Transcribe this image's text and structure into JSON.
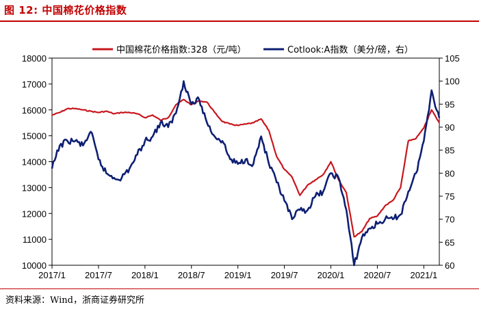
{
  "figure": {
    "number_label": "图 12:",
    "title": "中国棉花价格指数",
    "source": "资料来源：Wind，浙商证券研究所"
  },
  "colors": {
    "accent": "#c00000",
    "series_left": "#c8161d",
    "series_right": "#0d1f73"
  },
  "chart_data": {
    "type": "line",
    "title": "中国棉花价格指数",
    "x_tick_labels": [
      "2017/1",
      "2017/7",
      "2018/1",
      "2018/7",
      "2019/1",
      "2019/7",
      "2020/1",
      "2020/7",
      "2021/1"
    ],
    "x_range": [
      "2017-01",
      "2021-03"
    ],
    "left_axis": {
      "min": 10000,
      "max": 18000,
      "ticks": [
        "10000",
        "11000",
        "12000",
        "13000",
        "14000",
        "15000",
        "16000",
        "17000",
        "18000"
      ]
    },
    "right_axis": {
      "min": 60,
      "max": 105,
      "ticks": [
        "60",
        "65",
        "70",
        "75",
        "80",
        "85",
        "90",
        "95",
        "100",
        "105"
      ]
    },
    "legend_position": "top",
    "series": [
      {
        "name": "中国棉花价格指数:328（元/吨）",
        "axis": "left",
        "points": [
          [
            "2017-01",
            15800
          ],
          [
            "2017-02",
            15900
          ],
          [
            "2017-03",
            16050
          ],
          [
            "2017-04",
            16050
          ],
          [
            "2017-05",
            16000
          ],
          [
            "2017-06",
            15950
          ],
          [
            "2017-07",
            15900
          ],
          [
            "2017-08",
            15950
          ],
          [
            "2017-09",
            15850
          ],
          [
            "2017-10",
            15900
          ],
          [
            "2017-11",
            15900
          ],
          [
            "2017-12",
            15850
          ],
          [
            "2018-01",
            15700
          ],
          [
            "2018-02",
            15800
          ],
          [
            "2018-03",
            15600
          ],
          [
            "2018-04",
            15700
          ],
          [
            "2018-05",
            16200
          ],
          [
            "2018-06",
            16400
          ],
          [
            "2018-07",
            16200
          ],
          [
            "2018-08",
            16350
          ],
          [
            "2018-09",
            16300
          ],
          [
            "2018-10",
            15900
          ],
          [
            "2018-11",
            15550
          ],
          [
            "2018-12",
            15450
          ],
          [
            "2019-01",
            15400
          ],
          [
            "2019-02",
            15450
          ],
          [
            "2019-03",
            15500
          ],
          [
            "2019-04",
            15650
          ],
          [
            "2019-05",
            15200
          ],
          [
            "2019-06",
            14200
          ],
          [
            "2019-07",
            13700
          ],
          [
            "2019-08",
            13400
          ],
          [
            "2019-09",
            12700
          ],
          [
            "2019-10",
            13100
          ],
          [
            "2019-11",
            13300
          ],
          [
            "2019-12",
            13500
          ],
          [
            "2020-01",
            14000
          ],
          [
            "2020-02",
            13300
          ],
          [
            "2020-03",
            12800
          ],
          [
            "2020-04",
            11100
          ],
          [
            "2020-05",
            11300
          ],
          [
            "2020-06",
            11800
          ],
          [
            "2020-07",
            11900
          ],
          [
            "2020-08",
            12300
          ],
          [
            "2020-09",
            12500
          ],
          [
            "2020-10",
            13000
          ],
          [
            "2020-11",
            14800
          ],
          [
            "2020-12",
            14900
          ],
          [
            "2021-01",
            15300
          ],
          [
            "2021-02",
            16000
          ],
          [
            "2021-03",
            15500
          ]
        ]
      },
      {
        "name": "Cotlook:A指数（美分/磅，右）",
        "axis": "right",
        "points": [
          [
            "2017-01",
            81
          ],
          [
            "2017-02",
            86
          ],
          [
            "2017-03",
            87
          ],
          [
            "2017-04",
            87
          ],
          [
            "2017-05",
            86
          ],
          [
            "2017-06",
            89
          ],
          [
            "2017-07",
            83
          ],
          [
            "2017-08",
            80
          ],
          [
            "2017-09",
            79
          ],
          [
            "2017-10",
            79
          ],
          [
            "2017-11",
            81
          ],
          [
            "2017-12",
            84
          ],
          [
            "2018-01",
            87
          ],
          [
            "2018-02",
            88
          ],
          [
            "2018-03",
            91
          ],
          [
            "2018-04",
            90
          ],
          [
            "2018-05",
            93
          ],
          [
            "2018-06",
            100
          ],
          [
            "2018-07",
            95
          ],
          [
            "2018-08",
            96
          ],
          [
            "2018-09",
            91
          ],
          [
            "2018-10",
            88
          ],
          [
            "2018-11",
            87
          ],
          [
            "2018-12",
            83
          ],
          [
            "2019-01",
            82
          ],
          [
            "2019-02",
            83
          ],
          [
            "2019-03",
            82
          ],
          [
            "2019-04",
            88
          ],
          [
            "2019-05",
            82
          ],
          [
            "2019-06",
            78
          ],
          [
            "2019-07",
            74
          ],
          [
            "2019-08",
            70
          ],
          [
            "2019-09",
            72
          ],
          [
            "2019-10",
            72
          ],
          [
            "2019-11",
            75
          ],
          [
            "2019-12",
            76
          ],
          [
            "2020-01",
            80
          ],
          [
            "2020-02",
            79
          ],
          [
            "2020-03",
            72
          ],
          [
            "2020-04",
            60
          ],
          [
            "2020-05",
            66
          ],
          [
            "2020-06",
            68
          ],
          [
            "2020-07",
            69
          ],
          [
            "2020-08",
            70
          ],
          [
            "2020-09",
            70
          ],
          [
            "2020-10",
            71
          ],
          [
            "2020-11",
            76
          ],
          [
            "2020-12",
            80
          ],
          [
            "2021-01",
            87
          ],
          [
            "2021-02",
            98
          ],
          [
            "2021-03",
            92
          ]
        ]
      }
    ]
  }
}
